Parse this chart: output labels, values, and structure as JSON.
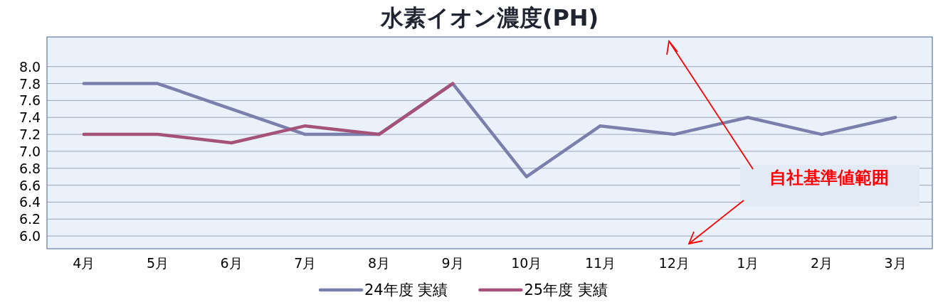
{
  "chart_data": {
    "type": "line",
    "title": "水素イオン濃度(PH)",
    "categories": [
      "4月",
      "5月",
      "6月",
      "7月",
      "8月",
      "9月",
      "10月",
      "11月",
      "12月",
      "1月",
      "2月",
      "3月"
    ],
    "series": [
      {
        "name": "24年度 実績",
        "color": "#7a7fab",
        "values": [
          7.8,
          7.8,
          7.5,
          7.2,
          7.2,
          7.8,
          6.7,
          7.3,
          7.2,
          7.4,
          7.2,
          7.4
        ]
      },
      {
        "name": "25年度 実績",
        "color": "#a5527a",
        "values": [
          7.2,
          7.2,
          7.1,
          7.3,
          7.2,
          7.8,
          null,
          null,
          null,
          null,
          null,
          null
        ]
      }
    ],
    "ylim": [
      5.85,
      8.35
    ],
    "yticks": [
      {
        "value": 6.0,
        "label": "6.0"
      },
      {
        "value": 6.2,
        "label": "6.2"
      },
      {
        "value": 6.4,
        "label": "6.4"
      },
      {
        "value": 6.6,
        "label": "6.6"
      },
      {
        "value": 6.8,
        "label": "6.8"
      },
      {
        "value": 7.0,
        "label": "7.0"
      },
      {
        "value": 7.2,
        "label": "7.2"
      },
      {
        "value": 7.4,
        "label": "7.4"
      },
      {
        "value": 7.6,
        "label": "7.6"
      },
      {
        "value": 7.8,
        "label": "7.8"
      },
      {
        "value": 8.0,
        "label": "8.0"
      }
    ],
    "grid": "y",
    "legend": "bottom",
    "marker": "none",
    "line_style": "solid",
    "annotations": [
      "自社基準値範囲"
    ]
  }
}
